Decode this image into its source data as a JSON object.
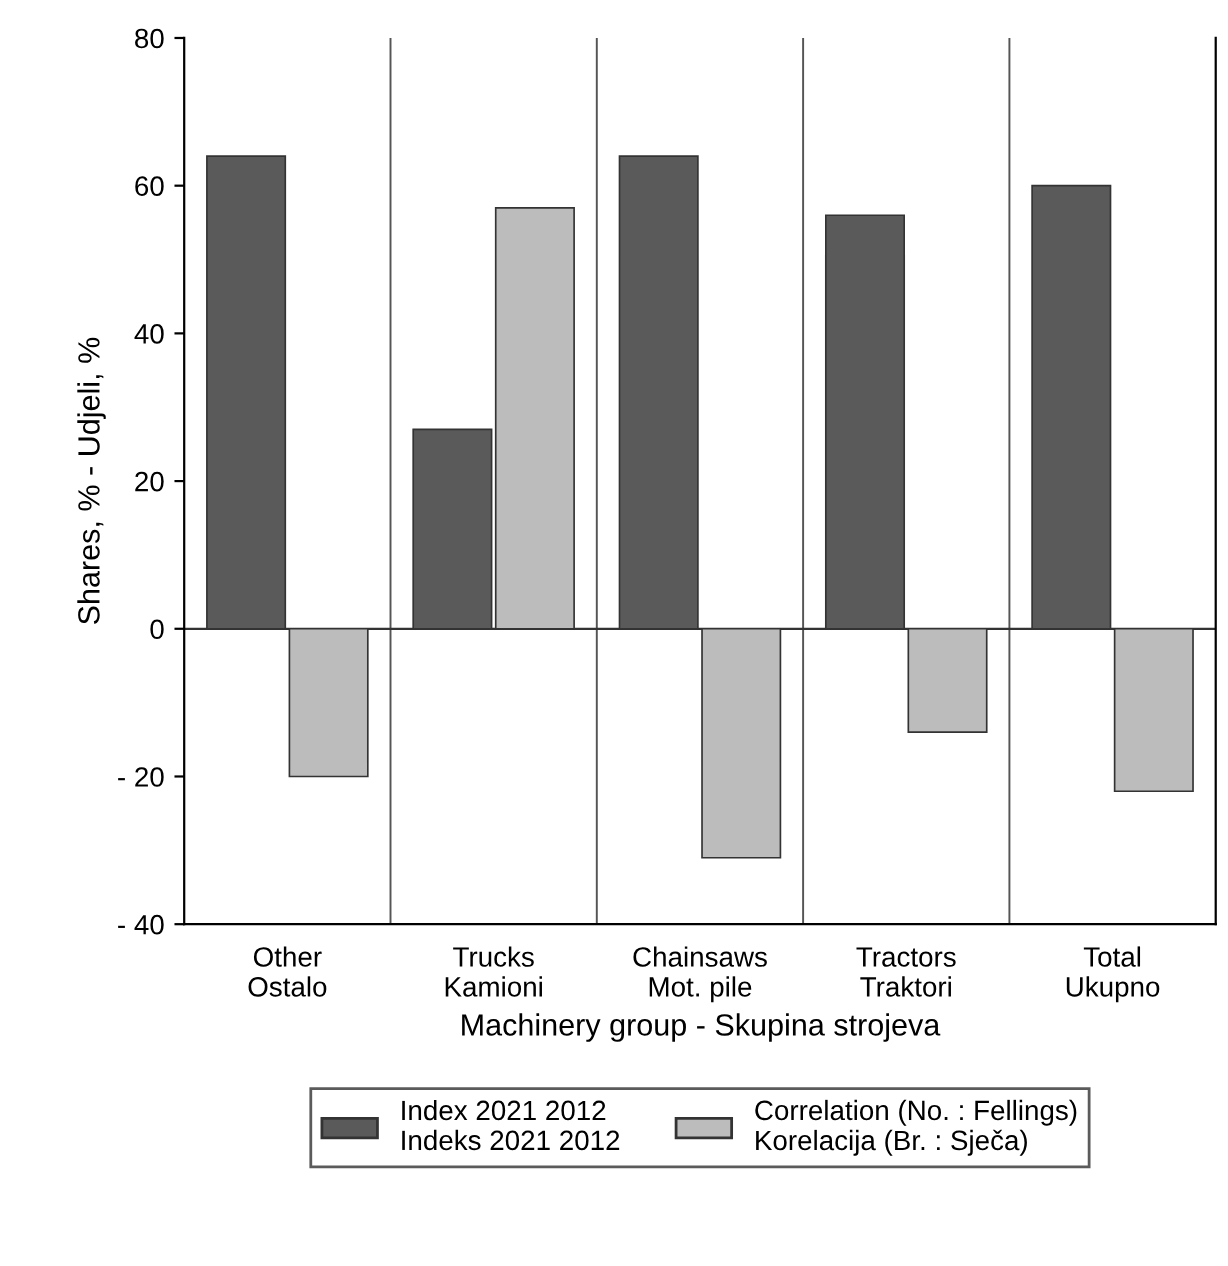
{
  "chart_data": {
    "type": "bar",
    "ylabel": "Shares, % - Udjeli, %",
    "xlabel": "Machinery group - Skupina strojeva",
    "categories": [
      "Other\nOstalo",
      "Trucks\nKamioni",
      "Chainsaws\nMot. pile",
      "Tractors\nTraktori",
      "Total\nUkupno"
    ],
    "series": [
      {
        "name": "Index 2021 2012\nIndeks 2021 2012",
        "color": "#5a5a5a",
        "values": [
          64,
          27,
          64,
          56,
          60
        ]
      },
      {
        "name": "Correlation (No. : Fellings)\nKorelacija (Br. : Sječa)",
        "color": "#bcbcbc",
        "values": [
          -20,
          57,
          -31,
          -14,
          -22
        ]
      }
    ],
    "ylim": [
      -40,
      80
    ],
    "yticks": [
      {
        "value": -40,
        "label": "- 40"
      },
      {
        "value": -20,
        "label": "- 20"
      },
      0,
      20,
      40,
      60,
      80
    ],
    "grid": "x",
    "legend": "bottom"
  }
}
